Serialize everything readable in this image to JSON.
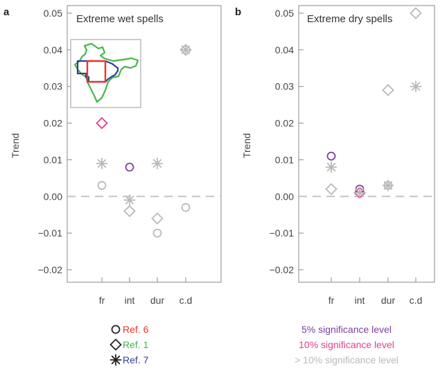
{
  "chart_data": [
    {
      "type": "scatter",
      "panel": "a",
      "title": "Extreme wet spells",
      "ylabel": "Trend",
      "xlabel": "",
      "categories": [
        "fr",
        "int",
        "dur",
        "c.d"
      ],
      "ylim": [
        -0.02,
        0.05
      ],
      "yticks": [
        "0.05",
        "0.04",
        "0.03",
        "0.02",
        "0.01",
        "0.00",
        "−0.01",
        "−0.02"
      ],
      "yticks_values": [
        0.05,
        0.04,
        0.03,
        0.02,
        0.01,
        0.0,
        -0.01,
        -0.02
      ],
      "zero_line": "dashed",
      "grid": false,
      "inset": "map of India with Ref. 6 (red), Ref. 1 (green) and Ref. 7 (blue) outlines",
      "points": [
        {
          "category": "fr",
          "marker": "circle",
          "value": 0.003,
          "significance": "gt10"
        },
        {
          "category": "fr",
          "marker": "diamond",
          "value": 0.02,
          "significance": "10"
        },
        {
          "category": "fr",
          "marker": "star",
          "value": 0.009,
          "significance": "gt10"
        },
        {
          "category": "int",
          "marker": "circle",
          "value": 0.008,
          "significance": "5"
        },
        {
          "category": "int",
          "marker": "diamond",
          "value": -0.004,
          "significance": "gt10"
        },
        {
          "category": "int",
          "marker": "star",
          "value": -0.001,
          "significance": "gt10"
        },
        {
          "category": "dur",
          "marker": "circle",
          "value": -0.01,
          "significance": "gt10"
        },
        {
          "category": "dur",
          "marker": "diamond",
          "value": -0.006,
          "significance": "gt10"
        },
        {
          "category": "dur",
          "marker": "star",
          "value": 0.009,
          "significance": "gt10"
        },
        {
          "category": "c.d",
          "marker": "circle",
          "value": -0.003,
          "significance": "gt10"
        },
        {
          "category": "c.d",
          "marker": "diamond",
          "value": 0.04,
          "significance": "gt10"
        },
        {
          "category": "c.d",
          "marker": "star",
          "value": 0.04,
          "significance": "gt10"
        }
      ]
    },
    {
      "type": "scatter",
      "panel": "b",
      "title": "Extreme dry spells",
      "ylabel": "Trend",
      "xlabel": "",
      "categories": [
        "fr",
        "int",
        "dur",
        "c.d"
      ],
      "ylim": [
        -0.02,
        0.05
      ],
      "yticks": [
        "0.05",
        "0.04",
        "0.03",
        "0.02",
        "0.01",
        "0.00",
        "−0.01",
        "−0.02"
      ],
      "yticks_values": [
        0.05,
        0.04,
        0.03,
        0.02,
        0.01,
        0.0,
        -0.01,
        -0.02
      ],
      "zero_line": "dashed",
      "grid": false,
      "points": [
        {
          "category": "fr",
          "marker": "circle",
          "value": 0.011,
          "significance": "5"
        },
        {
          "category": "fr",
          "marker": "diamond",
          "value": 0.002,
          "significance": "gt10"
        },
        {
          "category": "fr",
          "marker": "star",
          "value": 0.008,
          "significance": "gt10"
        },
        {
          "category": "int",
          "marker": "circle",
          "value": 0.002,
          "significance": "5"
        },
        {
          "category": "int",
          "marker": "diamond",
          "value": 0.001,
          "significance": "10"
        },
        {
          "category": "int",
          "marker": "star",
          "value": 0.001,
          "significance": "gt10"
        },
        {
          "category": "dur",
          "marker": "circle",
          "value": 0.003,
          "significance": "gt10"
        },
        {
          "category": "dur",
          "marker": "diamond",
          "value": 0.029,
          "significance": "gt10"
        },
        {
          "category": "dur",
          "marker": "star",
          "value": 0.003,
          "significance": "gt10"
        },
        {
          "category": "c.d",
          "marker": "diamond",
          "value": 0.05,
          "significance": "gt10"
        },
        {
          "category": "c.d",
          "marker": "star",
          "value": 0.03,
          "significance": "gt10"
        }
      ]
    }
  ],
  "legend": {
    "markers": [
      {
        "marker": "circle",
        "label": "Ref. 6",
        "color": "#e8342c"
      },
      {
        "marker": "diamond",
        "label": "Ref. 1",
        "color": "#43b64a"
      },
      {
        "marker": "star",
        "label": "Ref. 7",
        "color": "#2f3e93"
      }
    ],
    "significance": [
      {
        "key": "5",
        "label": "5% significance level",
        "color": "#7b3f9e"
      },
      {
        "key": "10",
        "label": "10% significance level",
        "color": "#e0408f"
      },
      {
        "key": "gt10",
        "label": "> 10% significance level",
        "color": "#b9b9b9"
      }
    ]
  },
  "colors": {
    "sig_5": "#7b3f9e",
    "sig_10": "#e0408f",
    "sig_gt10": "#b9b9b9",
    "axis": "#8a8a8a",
    "zero_line": "#c4c4c4"
  }
}
